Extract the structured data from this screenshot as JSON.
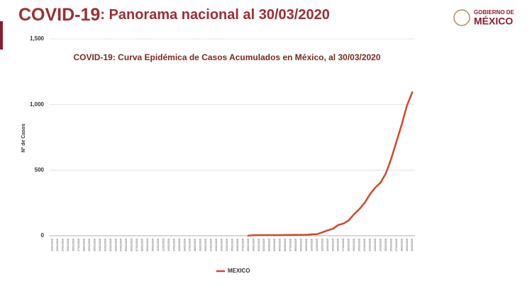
{
  "header": {
    "title_strong": "COVID-19",
    "title_rest": ": Panorama nacional al 30/03/2020",
    "logo_top": "GOBIERNO DE",
    "logo_bottom": "MÉXICO"
  },
  "chart_data": {
    "type": "line",
    "title": "COVID-19: Curva Epidémica de Casos Acumulados en México, al 30/03/2020",
    "y_label": "Nº de Casos",
    "categories": [
      "22/01/2020",
      "23/01/2020",
      "24/01/2020",
      "25/01/2020",
      "26/01/2020",
      "27/01/2020",
      "28/01/2020",
      "29/01/2020",
      "30/01/2020",
      "31/01/2020",
      "01/02/2020",
      "02/02/2020",
      "03/02/2020",
      "04/02/2020",
      "05/02/2020",
      "06/02/2020",
      "07/02/2020",
      "08/02/2020",
      "09/02/2020",
      "10/02/2020",
      "11/02/2020",
      "12/02/2020",
      "13/02/2020",
      "14/02/2020",
      "15/02/2020",
      "16/02/2020",
      "17/02/2020",
      "18/02/2020",
      "19/02/2020",
      "20/02/2020",
      "21/02/2020",
      "22/02/2020",
      "23/02/2020",
      "24/02/2020",
      "25/02/2020",
      "26/02/2020",
      "27/02/2020",
      "28/02/2020",
      "29/02/2020",
      "01/03/2020",
      "02/03/2020",
      "03/03/2020",
      "04/03/2020",
      "05/03/2020",
      "06/03/2020",
      "07/03/2020",
      "08/03/2020",
      "09/03/2020",
      "10/03/2020",
      "11/03/2020",
      "12/03/2020",
      "13/03/2020",
      "14/03/2020",
      "15/03/2020",
      "16/03/2020",
      "17/03/2020",
      "18/03/2020",
      "19/03/2020",
      "20/03/2020",
      "21/03/2020",
      "22/03/2020",
      "23/03/2020",
      "24/03/2020",
      "25/03/2020",
      "26/03/2020",
      "27/03/2020",
      "28/03/2020",
      "29/03/2020",
      "30/03/2020"
    ],
    "series": [
      {
        "name": "MEXICO",
        "color": "#d4482c",
        "values": [
          null,
          null,
          null,
          null,
          null,
          null,
          null,
          null,
          null,
          null,
          null,
          null,
          null,
          null,
          null,
          null,
          null,
          null,
          null,
          null,
          null,
          null,
          null,
          null,
          null,
          null,
          null,
          null,
          null,
          null,
          null,
          null,
          null,
          null,
          null,
          null,
          null,
          1,
          4,
          5,
          5,
          5,
          5,
          5,
          6,
          6,
          7,
          7,
          7,
          11,
          12,
          26,
          41,
          53,
          82,
          93,
          118,
          164,
          203,
          251,
          316,
          367,
          405,
          475,
          585,
          717,
          848,
          993,
          1094
        ]
      }
    ],
    "ylim": [
      0,
      1500
    ],
    "yticks": [
      0,
      500,
      {
        "value": 1000,
        "label": "1,000"
      },
      {
        "value": 1500,
        "label": "1,500"
      }
    ],
    "grid": true,
    "legend": "bottom"
  }
}
